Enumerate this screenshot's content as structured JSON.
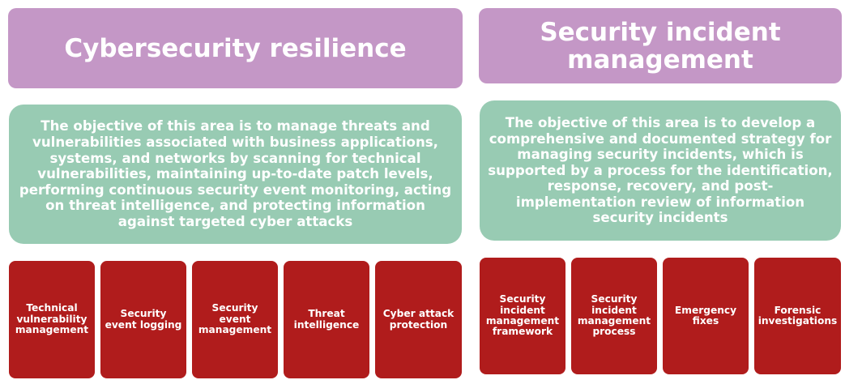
{
  "left": {
    "title": "Cybersecurity resilience",
    "description": "The objective of this area is to manage threats and vulnerabilities associated with business applications, systems, and networks by scanning for technical vulnerabilities, maintaining up-to-date patch levels, performing continuous security event monitoring, acting on threat intelligence, and protecting information against targeted cyber attacks",
    "items": [
      "Technical vulnerability management",
      "Security event logging",
      "Security event management",
      "Threat intelligence",
      "Cyber attack protection"
    ]
  },
  "right": {
    "title": "Security incident management",
    "description": "The objective of this area is to develop a comprehensive and documented strategy for managing security incidents, which is supported by a process for the identification, response, recovery, and post-implementation review of information security incidents",
    "items": [
      "Security incident management framework",
      "Security incident management process",
      "Emergency fixes",
      "Forensic investigations"
    ]
  },
  "colors": {
    "title_bg": "#c497c6",
    "description_bg": "#98cbb3",
    "item_bg": "#b01c1c",
    "text": "#ffffff"
  }
}
